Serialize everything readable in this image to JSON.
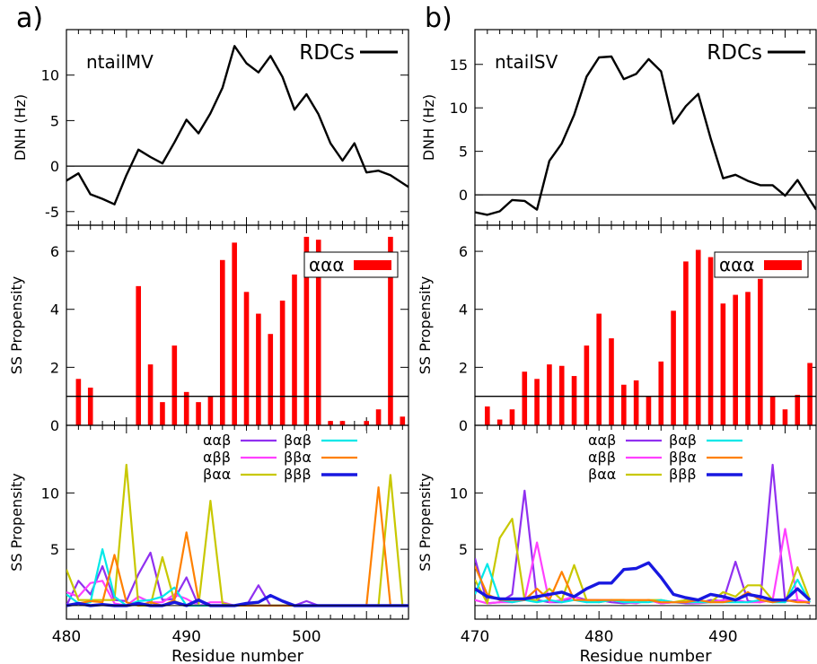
{
  "panels": [
    {
      "letter": "a)",
      "label": "ntailMV",
      "x_range": [
        480,
        508.5
      ],
      "x_ticks": [
        480,
        490,
        500
      ],
      "xlabel": "Residue number",
      "rdc": {
        "ylabel": "DNH (Hz)",
        "ylim": [
          -6.5,
          15
        ],
        "ticks": [
          -5,
          0,
          5,
          10
        ],
        "legend": "RDCs",
        "x": [
          479.5,
          480,
          481,
          482,
          483,
          484,
          485,
          486,
          487,
          488,
          489,
          490,
          491,
          492,
          493,
          494,
          495,
          496,
          497,
          498,
          499,
          500,
          501,
          502,
          503,
          504,
          505,
          506,
          507,
          508.5
        ],
        "y": [
          -1.9,
          -1.6,
          -0.8,
          -3.1,
          -3.6,
          -4.2,
          -1.0,
          1.8,
          1.0,
          0.3,
          2.6,
          5.1,
          3.6,
          5.8,
          8.6,
          13.2,
          11.3,
          10.3,
          12.1,
          9.8,
          6.2,
          7.9,
          5.7,
          2.5,
          0.6,
          2.5,
          -0.7,
          -0.5,
          -1.0,
          -2.3
        ]
      },
      "ss1": {
        "ylabel": "SS Propensity",
        "ylim": [
          0,
          6.9
        ],
        "ticks": [
          0,
          2,
          4,
          6
        ],
        "legend": "ααα",
        "ref_line": 1,
        "residues": [
          481,
          482,
          483,
          484,
          485,
          486,
          487,
          488,
          489,
          490,
          491,
          492,
          493,
          494,
          495,
          496,
          497,
          498,
          499,
          500,
          501,
          502,
          503,
          504,
          505,
          506,
          507,
          508,
          509
        ],
        "values": [
          1.6,
          1.3,
          0,
          0,
          0,
          4.8,
          2.1,
          0.8,
          2.75,
          1.15,
          0.8,
          1.0,
          5.7,
          6.3,
          4.6,
          3.85,
          3.15,
          4.3,
          5.2,
          6.5,
          6.4,
          0.15,
          0.15,
          0,
          0.15,
          0.55,
          6.5,
          0.3,
          0.2
        ]
      },
      "ss2": {
        "ylabel": "SS Propensity",
        "ylim": [
          -1.2,
          16
        ],
        "ticks": [
          5,
          10
        ],
        "series": [
          {
            "name": "ααβ",
            "color": "#9030f0",
            "width": 2.2,
            "values": [
              0,
              2.2,
              1.0,
              3.5,
              0.5,
              0.4,
              2.8,
              4.7,
              0.5,
              0.6,
              2.5,
              0,
              0,
              0,
              0,
              0,
              1.8,
              0,
              0,
              0,
              0.4,
              0,
              0,
              0,
              0,
              0,
              0,
              0,
              0,
              0
            ]
          },
          {
            "name": "αββ",
            "color": "#ff40ff",
            "width": 2.2,
            "values": [
              1.2,
              0.8,
              2.0,
              2.2,
              0.2,
              0,
              0.8,
              0.3,
              0.3,
              1.0,
              0.6,
              0,
              0.3,
              0.3,
              0,
              0,
              0,
              0,
              0,
              0,
              0,
              0,
              0,
              0,
              0,
              0,
              0,
              0,
              0,
              0
            ]
          },
          {
            "name": "βαα",
            "color": "#c8c800",
            "width": 2.2,
            "values": [
              3.2,
              0.5,
              0.5,
              0.5,
              0.5,
              12.5,
              0,
              0,
              4.3,
              0.4,
              0,
              0,
              9.3,
              0.2,
              0,
              0,
              0,
              0,
              0,
              0,
              0,
              0,
              0,
              0,
              0,
              0,
              0,
              11.6,
              0,
              0
            ]
          },
          {
            "name": "βαβ",
            "color": "#00e8e8",
            "width": 2.2,
            "values": [
              1.0,
              0.2,
              0.3,
              5.0,
              0.8,
              0,
              0.4,
              0.5,
              0.8,
              1.6,
              0,
              0,
              0,
              0,
              0,
              0,
              0,
              0,
              0,
              0,
              0,
              0,
              0,
              0,
              0,
              0,
              0,
              0,
              0,
              0
            ]
          },
          {
            "name": "ββα",
            "color": "#ff8000",
            "width": 2.2,
            "values": [
              0,
              0.2,
              0.4,
              0.3,
              4.5,
              0.3,
              0,
              0.3,
              0,
              0.5,
              6.5,
              0.5,
              0,
              0,
              0,
              0,
              0,
              0,
              0,
              0,
              0,
              0,
              0,
              0,
              0,
              0,
              10.5,
              0,
              0,
              0
            ]
          },
          {
            "name": "βββ",
            "color": "#1818e0",
            "width": 3.4,
            "values": [
              0,
              0.2,
              0,
              0.1,
              0,
              0,
              0.2,
              0,
              0,
              0.3,
              0,
              0.5,
              0,
              0,
              0,
              0.2,
              0.3,
              0.9,
              0.4,
              0,
              0,
              0,
              0,
              0,
              0,
              0,
              0,
              0,
              0,
              0
            ]
          }
        ]
      }
    },
    {
      "letter": "b)",
      "label": "ntailSV",
      "x_range": [
        470,
        497.5
      ],
      "x_ticks": [
        470,
        480,
        490
      ],
      "xlabel": "Residue number",
      "rdc": {
        "ylabel": "DNH (Hz)",
        "ylim": [
          -3.5,
          19
        ],
        "ticks": [
          0,
          5,
          10,
          15
        ],
        "legend": "RDCs",
        "x": [
          470,
          471,
          472,
          473,
          474,
          475,
          476,
          477,
          478,
          479,
          480,
          481,
          482,
          483,
          484,
          485,
          486,
          487,
          488,
          489,
          490,
          491,
          492,
          493,
          494,
          495,
          496,
          497,
          497.5
        ],
        "y": [
          -2.0,
          -2.3,
          -1.9,
          -0.6,
          -0.7,
          -1.7,
          3.9,
          5.9,
          9.2,
          13.6,
          15.8,
          15.9,
          13.3,
          13.9,
          15.6,
          14.2,
          8.2,
          10.2,
          11.6,
          6.5,
          1.9,
          2.3,
          1.6,
          1.1,
          1.1,
          -0.1,
          1.7,
          -0.6,
          -1.7
        ]
      },
      "ss1": {
        "ylabel": "SS Propensity",
        "ylim": [
          0,
          6.9
        ],
        "ticks": [
          0,
          2,
          4,
          6
        ],
        "legend": "ααα",
        "ref_line": 1,
        "residues": [
          471,
          472,
          473,
          474,
          475,
          476,
          477,
          478,
          479,
          480,
          481,
          482,
          483,
          484,
          485,
          486,
          487,
          488,
          489,
          490,
          491,
          492,
          493,
          494,
          495,
          496,
          497
        ],
        "values": [
          0.65,
          0.2,
          0.55,
          1.85,
          1.6,
          2.1,
          2.05,
          1.7,
          2.75,
          3.85,
          3.0,
          1.4,
          1.55,
          1.0,
          2.2,
          3.95,
          5.65,
          6.05,
          5.8,
          4.2,
          4.5,
          4.6,
          5.05,
          1.0,
          0.55,
          1.05,
          2.15
        ]
      },
      "ss2": {
        "ylabel": "SS Propensity",
        "ylim": [
          -1.2,
          16
        ],
        "ticks": [
          5,
          10
        ],
        "series": [
          {
            "name": "ααβ",
            "color": "#9030f0",
            "width": 2.2,
            "values": [
              4.2,
              0.2,
              0.3,
              1.0,
              10.2,
              0.5,
              0.3,
              0.3,
              0.8,
              0.5,
              0.5,
              0.3,
              0.2,
              0.3,
              0.5,
              0.2,
              0.3,
              0.2,
              0.2,
              0.5,
              0.4,
              3.9,
              0.4,
              0.3,
              12.5,
              0.4,
              0.5,
              0.2
            ]
          },
          {
            "name": "αββ",
            "color": "#ff40ff",
            "width": 2.2,
            "values": [
              0.5,
              0.2,
              0.3,
              0.3,
              0.5,
              5.6,
              0.3,
              0.5,
              0.8,
              0.3,
              0.5,
              0.5,
              0.3,
              0.2,
              0.5,
              0.2,
              0.3,
              0.3,
              0.2,
              0.3,
              0.5,
              0.5,
              0.3,
              0.3,
              0.5,
              6.8,
              0.5,
              0.3
            ]
          },
          {
            "name": "βαα",
            "color": "#c8c800",
            "width": 2.2,
            "values": [
              2.3,
              0.2,
              6.0,
              7.7,
              0.5,
              0.5,
              1.5,
              0.5,
              3.6,
              0.5,
              0.3,
              0.5,
              0.5,
              0.3,
              0.5,
              0.5,
              0.3,
              0.5,
              0.3,
              0.3,
              1.2,
              0.8,
              1.8,
              1.8,
              0.5,
              0.3,
              3.4,
              0.5
            ]
          },
          {
            "name": "βαβ",
            "color": "#00e8e8",
            "width": 2.2,
            "values": [
              1.0,
              3.7,
              0.5,
              0.3,
              0.5,
              0.3,
              0.5,
              0.3,
              0.5,
              0.3,
              0.3,
              0.5,
              0.3,
              0.3,
              0.3,
              0.5,
              0.3,
              0.3,
              0.3,
              0.3,
              0.3,
              0.3,
              0.3,
              0.5,
              0.3,
              0.3,
              2.3,
              0.3
            ]
          },
          {
            "name": "ββα",
            "color": "#ff8000",
            "width": 2.2,
            "values": [
              3.5,
              1.0,
              0.5,
              0.5,
              0.5,
              1.5,
              0.5,
              3.0,
              0.5,
              0.5,
              0.5,
              0.5,
              0.5,
              0.5,
              0.5,
              0.3,
              0.3,
              0.3,
              0.5,
              0.3,
              0.3,
              0.5,
              1.2,
              0.5,
              0.3,
              0.5,
              0.3,
              0.3
            ]
          },
          {
            "name": "βββ",
            "color": "#1818e0",
            "width": 3.4,
            "values": [
              1.5,
              0.8,
              0.6,
              0.6,
              0.6,
              0.8,
              1.0,
              1.2,
              0.8,
              1.5,
              2.0,
              2.0,
              3.2,
              3.3,
              3.8,
              2.5,
              1.0,
              0.7,
              0.5,
              1.0,
              0.8,
              0.5,
              1.0,
              0.8,
              0.5,
              0.5,
              1.5,
              0.5
            ]
          }
        ]
      }
    }
  ]
}
